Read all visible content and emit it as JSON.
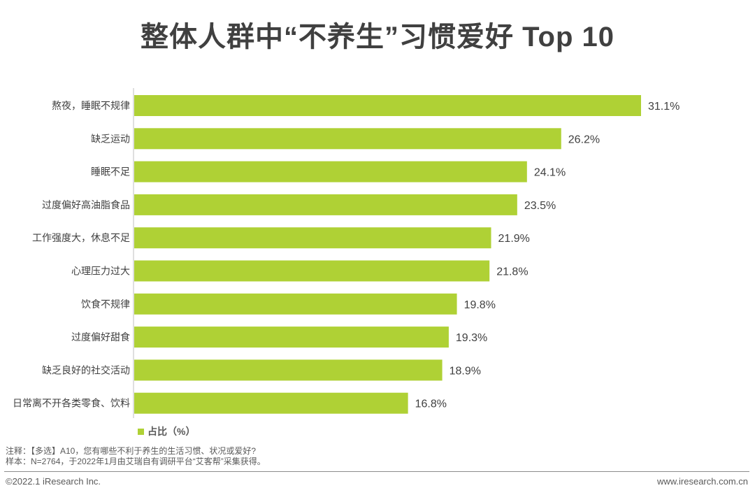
{
  "title": "整体人群中“不养生”习惯爱好 Top 10",
  "colors": {
    "bar": "#afd135",
    "axis": "#bfbfbf",
    "label": "#404040"
  },
  "legend": {
    "label": "占比（%）"
  },
  "notes": {
    "line1": "注释：【多选】A10，您有哪些不利于养生的生活习惯、状况或爱好?",
    "line2": "样本：N=2764，于2022年1月由艾瑞自有调研平台“艾客帮”采集获得。"
  },
  "footer": {
    "copyright": "©2022.1 iResearch Inc.",
    "website": "www.iresearch.com.cn"
  },
  "chart_data": {
    "type": "bar",
    "orientation": "horizontal",
    "categories": [
      "熬夜，睡眠不规律",
      "缺乏运动",
      "睡眠不足",
      "过度偏好高油脂食品",
      "工作强度大，休息不足",
      "心理压力过大",
      "饮食不规律",
      "过度偏好甜食",
      "缺乏良好的社交活动",
      "日常离不开各类零食、饮料"
    ],
    "values": [
      31.1,
      26.2,
      24.1,
      23.5,
      21.9,
      21.8,
      19.8,
      19.3,
      18.9,
      16.8
    ],
    "value_labels": [
      "31.1%",
      "26.2%",
      "24.1%",
      "23.5%",
      "21.9%",
      "21.8%",
      "19.8%",
      "19.3%",
      "18.9%",
      "16.8%"
    ],
    "series": [
      {
        "name": "占比（%）"
      }
    ],
    "legend_position": "bottom-left",
    "grid": false
  }
}
